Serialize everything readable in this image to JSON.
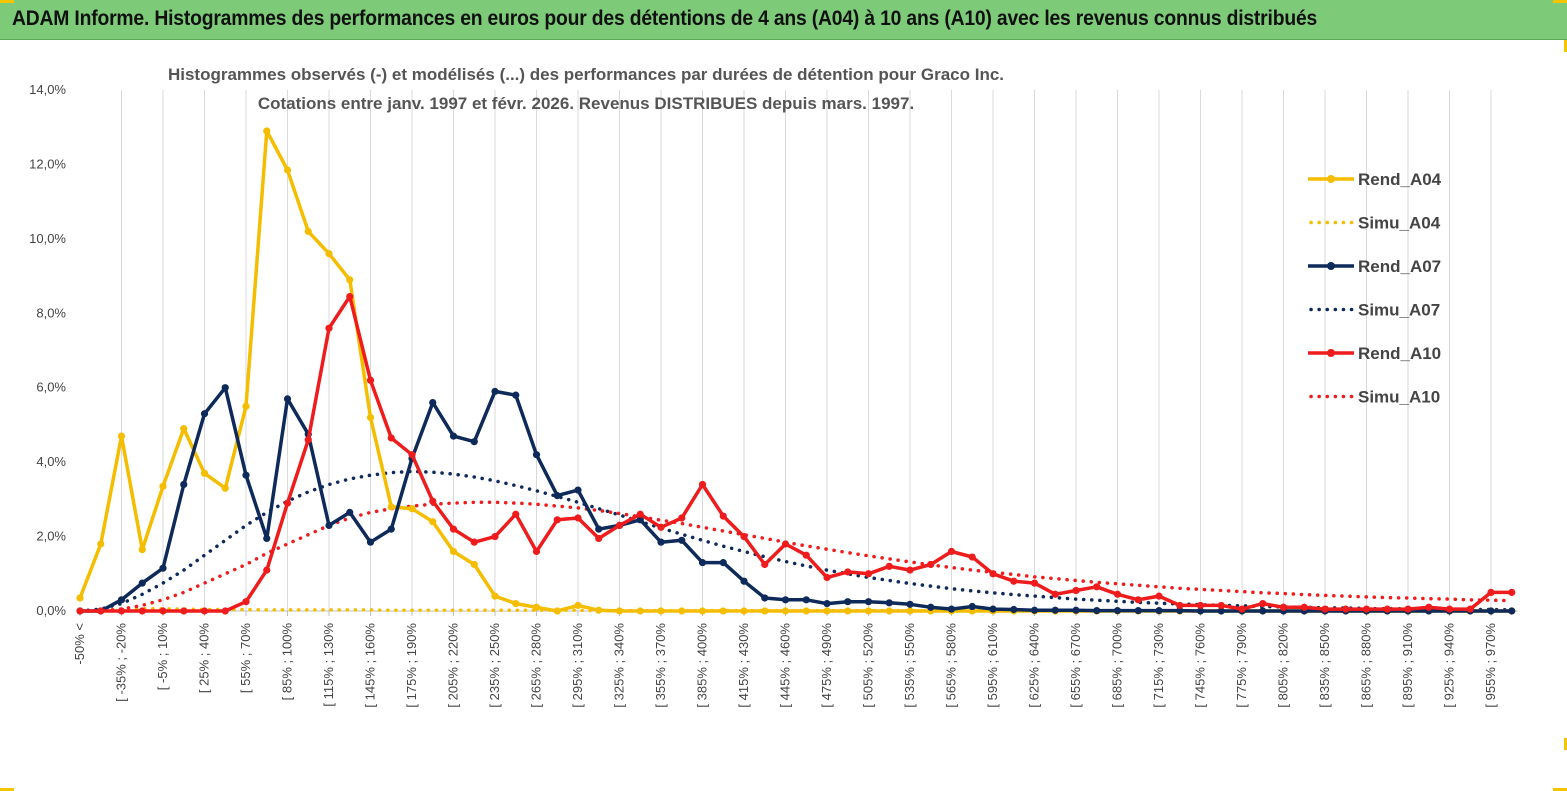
{
  "banner": {
    "title": "ADAM Informe. Histogrammes des performances en euros pour des détentions de 4 ans (A04) à 10 ans (A10) avec les revenus connus distribués",
    "color": "#7dcb79"
  },
  "chart_data": {
    "type": "line",
    "title_line1": "Histogrammes observés (-) et modélisés (...) des performances par durées de détention pour Graco Inc.",
    "title_line2": "Cotations entre janv. 1997 et févr. 2026. Revenus DISTRIBUES depuis mars. 1997.",
    "ylim": [
      0,
      14
    ],
    "y_ticks": [
      "0,0%",
      "2,0%",
      "4,0%",
      "6,0%",
      "8,0%",
      "10,0%",
      "12,0%",
      "14,0%"
    ],
    "y_tick_values": [
      0,
      2,
      4,
      6,
      8,
      10,
      12,
      14
    ],
    "grid": "vertical",
    "legend_position": "right",
    "categories_count": 70,
    "x_tick_labels": [
      "-50% <",
      "[ -35% ; -20%",
      "[ -5% ; 10%",
      "[ 25% ; 40%",
      "[ 55% ; 70%",
      "[ 85% ; 100%",
      "[ 115% ; 130%",
      "[ 145% ; 160%",
      "[ 175% ; 190%",
      "[ 205% ; 220%",
      "[ 235% ; 250%",
      "[ 265% ; 280%",
      "[ 295% ; 310%",
      "[ 325% ; 340%",
      "[ 355% ; 370%",
      "[ 385% ; 400%",
      "[ 415% ; 430%",
      "[ 445% ; 460%",
      "[ 475% ; 490%",
      "[ 505% ; 520%",
      "[ 535% ; 550%",
      "[ 565% ; 580%",
      "[ 595% ; 610%",
      "[ 625% ; 640%",
      "[ 655% ; 670%",
      "[ 685% ; 700%",
      "[ 715% ; 730%",
      "[ 745% ; 760%",
      "[ 775% ; 790%",
      "[ 805% ; 820%",
      "[ 835% ; 850%",
      "[ 865% ; 880%",
      "[ 895% ; 910%",
      "[ 925% ; 940%",
      "[ 955% ; 970%"
    ],
    "x_tick_indices": [
      0,
      2,
      4,
      6,
      8,
      10,
      12,
      14,
      16,
      18,
      20,
      22,
      24,
      26,
      28,
      30,
      32,
      34,
      36,
      38,
      40,
      42,
      44,
      46,
      48,
      50,
      52,
      54,
      56,
      58,
      60,
      62,
      64,
      66,
      68
    ],
    "series": [
      {
        "name": "Rend_A04",
        "style": "solid",
        "color": "#f5bd00",
        "values": [
          0.35,
          1.8,
          4.7,
          1.65,
          3.35,
          4.9,
          3.7,
          3.3,
          5.5,
          12.9,
          11.85,
          10.2,
          9.6,
          8.9,
          5.2,
          2.8,
          2.75,
          2.4,
          1.6,
          1.25,
          0.4,
          0.2,
          0.1,
          0.0,
          0.15,
          0.02,
          0.0,
          0.0,
          0.0,
          0.0,
          0.0,
          0.0,
          0.0,
          0.0,
          0.0,
          0.0,
          0.0,
          0.0,
          0.0,
          0.0,
          0.0,
          0.0,
          0.0,
          0.0,
          0.0,
          0.0,
          0.0,
          0.0,
          0.0,
          0.0,
          0.0,
          0.0,
          0.0,
          0.0,
          0.0,
          0.0,
          0.0,
          0.0,
          0.0,
          0.0,
          0.0,
          0.0,
          0.0,
          0.0,
          0.0,
          0.0,
          0.0,
          0.0,
          0.0,
          0.0
        ]
      },
      {
        "name": "Simu_A04",
        "style": "dotted",
        "color": "#f5bd00",
        "values": [
          0.0,
          0.02,
          0.05,
          0.06,
          0.06,
          0.05,
          0.04,
          0.04,
          0.04,
          0.03,
          0.03,
          0.03,
          0.03,
          0.03,
          0.03,
          0.02,
          0.02,
          0.02,
          0.02,
          0.02,
          0.02,
          0.02,
          0.02,
          0.02,
          0.02,
          0.01,
          0.01,
          0.01,
          0.01,
          0.01,
          0.01,
          0.01,
          0.01,
          0.01,
          0.01,
          0.01,
          0.01,
          0.01,
          0.01,
          0.01,
          0.01,
          0.01,
          0.01,
          0.01,
          0.01,
          0.01,
          0.0,
          0.0,
          0.0,
          0.0,
          0.0,
          0.0,
          0.0,
          0.0,
          0.0,
          0.0,
          0.0,
          0.0,
          0.0,
          0.0,
          0.0,
          0.0,
          0.0,
          0.0,
          0.0,
          0.0,
          0.0,
          0.0,
          0.0,
          0.0
        ]
      },
      {
        "name": "Rend_A07",
        "style": "solid",
        "color": "#0e2a5a",
        "values": [
          0.0,
          0.0,
          0.3,
          0.75,
          1.15,
          3.4,
          5.3,
          6.0,
          3.65,
          1.95,
          5.7,
          4.75,
          2.3,
          2.65,
          1.85,
          2.2,
          4.1,
          5.6,
          4.7,
          4.55,
          5.9,
          5.8,
          4.2,
          3.1,
          3.25,
          2.2,
          2.3,
          2.45,
          1.85,
          1.9,
          1.3,
          1.3,
          0.8,
          0.35,
          0.3,
          0.3,
          0.2,
          0.25,
          0.25,
          0.22,
          0.18,
          0.1,
          0.05,
          0.12,
          0.05,
          0.04,
          0.02,
          0.02,
          0.02,
          0.01,
          0.01,
          0.01,
          0.01,
          0.01,
          0.0,
          0.0,
          0.0,
          0.0,
          0.0,
          0.0,
          0.0,
          0.0,
          0.0,
          0.0,
          0.0,
          0.0,
          0.0,
          0.0,
          0.0,
          0.0
        ]
      },
      {
        "name": "Simu_A07",
        "style": "dotted",
        "color": "#0e2a5a",
        "values": [
          0.0,
          0.05,
          0.2,
          0.45,
          0.75,
          1.1,
          1.5,
          1.9,
          2.3,
          2.65,
          2.95,
          3.2,
          3.4,
          3.55,
          3.65,
          3.72,
          3.75,
          3.73,
          3.68,
          3.6,
          3.5,
          3.37,
          3.23,
          3.08,
          2.92,
          2.75,
          2.58,
          2.4,
          2.23,
          2.06,
          1.9,
          1.74,
          1.6,
          1.46,
          1.33,
          1.21,
          1.1,
          1.0,
          0.9,
          0.82,
          0.74,
          0.67,
          0.6,
          0.54,
          0.49,
          0.44,
          0.4,
          0.36,
          0.32,
          0.29,
          0.26,
          0.23,
          0.21,
          0.19,
          0.17,
          0.15,
          0.14,
          0.12,
          0.11,
          0.1,
          0.09,
          0.08,
          0.07,
          0.06,
          0.06,
          0.05,
          0.05,
          0.04,
          0.04,
          0.03
        ]
      },
      {
        "name": "Rend_A10",
        "style": "solid",
        "color": "#ee1c1c",
        "values": [
          0.0,
          0.0,
          0.0,
          0.0,
          0.0,
          0.0,
          0.0,
          0.0,
          0.25,
          1.1,
          2.9,
          4.6,
          7.6,
          8.45,
          6.2,
          4.65,
          4.2,
          2.95,
          2.2,
          1.85,
          2.0,
          2.6,
          1.6,
          2.45,
          2.5,
          1.95,
          2.3,
          2.6,
          2.25,
          2.5,
          3.4,
          2.55,
          2.0,
          1.25,
          1.8,
          1.5,
          0.9,
          1.05,
          1.0,
          1.2,
          1.1,
          1.25,
          1.6,
          1.45,
          1.0,
          0.8,
          0.75,
          0.45,
          0.55,
          0.65,
          0.45,
          0.3,
          0.4,
          0.15,
          0.15,
          0.15,
          0.05,
          0.2,
          0.1,
          0.1,
          0.05,
          0.05,
          0.05,
          0.05,
          0.05,
          0.1,
          0.05,
          0.05,
          0.5,
          0.5
        ]
      },
      {
        "name": "Simu_A10",
        "style": "dotted",
        "color": "#ee1c1c",
        "values": [
          0.0,
          0.0,
          0.05,
          0.15,
          0.3,
          0.5,
          0.75,
          1.0,
          1.25,
          1.55,
          1.8,
          2.05,
          2.3,
          2.5,
          2.65,
          2.75,
          2.82,
          2.87,
          2.9,
          2.92,
          2.92,
          2.9,
          2.87,
          2.82,
          2.77,
          2.7,
          2.62,
          2.53,
          2.44,
          2.35,
          2.25,
          2.15,
          2.05,
          1.95,
          1.85,
          1.75,
          1.66,
          1.57,
          1.48,
          1.4,
          1.32,
          1.24,
          1.17,
          1.1,
          1.04,
          0.98,
          0.92,
          0.87,
          0.82,
          0.77,
          0.73,
          0.69,
          0.65,
          0.61,
          0.58,
          0.55,
          0.52,
          0.49,
          0.47,
          0.44,
          0.42,
          0.4,
          0.38,
          0.36,
          0.35,
          0.33,
          0.32,
          0.3,
          0.29,
          0.28
        ]
      }
    ]
  }
}
